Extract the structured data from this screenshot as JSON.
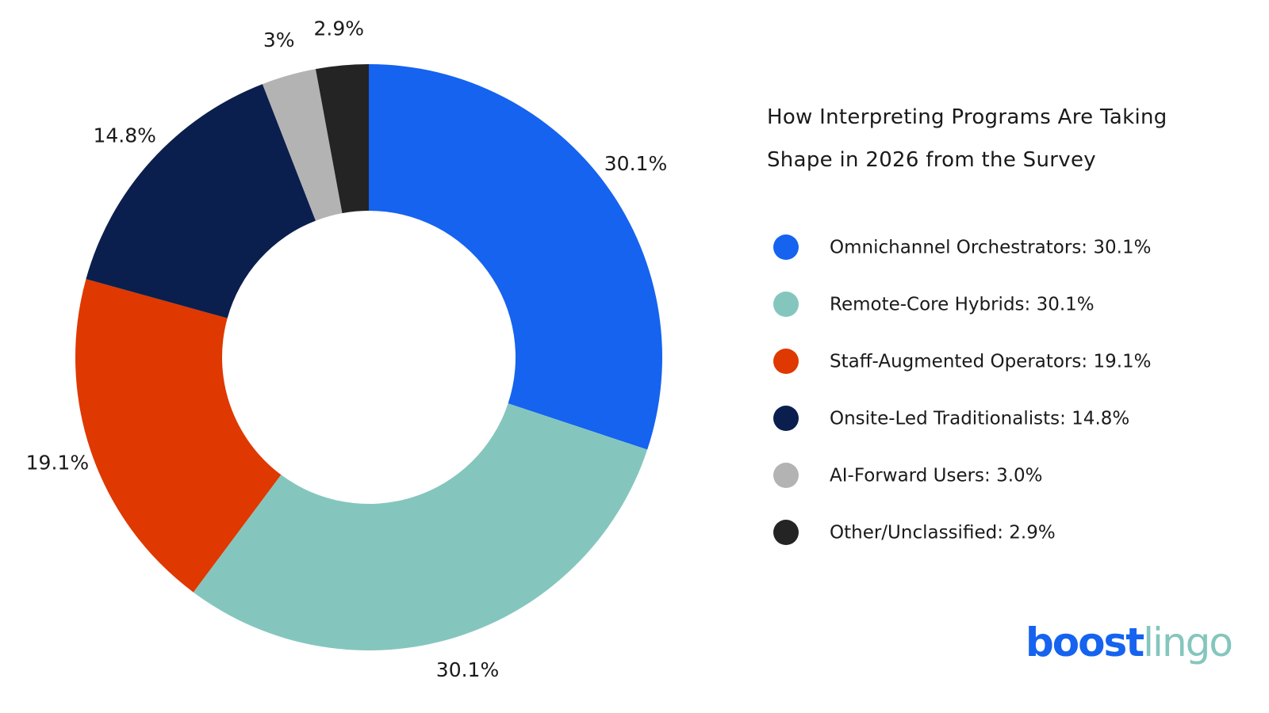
{
  "chart_data": {
    "type": "donut",
    "title": "How Interpreting Programs Are Taking Shape in 2026 from the Survey",
    "categories": [
      "Omnichannel Orchestrators: 30.1%",
      "Remote-Core Hybrids: 30.1%",
      "Staff-Augmented Operators: 19.1%",
      "Onsite-Led Traditionalists: 14.8%",
      "AI-Forward Users: 3.0%",
      "Other/Unclassified: 2.9%"
    ],
    "values": [
      30.1,
      30.1,
      19.1,
      14.8,
      3.0,
      2.9
    ],
    "value_labels": [
      "30.1%",
      "30.1%",
      "19.1%",
      "14.8%",
      "3%",
      "2.9%"
    ],
    "colors": [
      "#1563ef",
      "#84c6be",
      "#df3800",
      "#0a1f4d",
      "#b3b3b3",
      "#242424"
    ],
    "legend": "right"
  },
  "brand": [
    "boost",
    "lingo"
  ]
}
